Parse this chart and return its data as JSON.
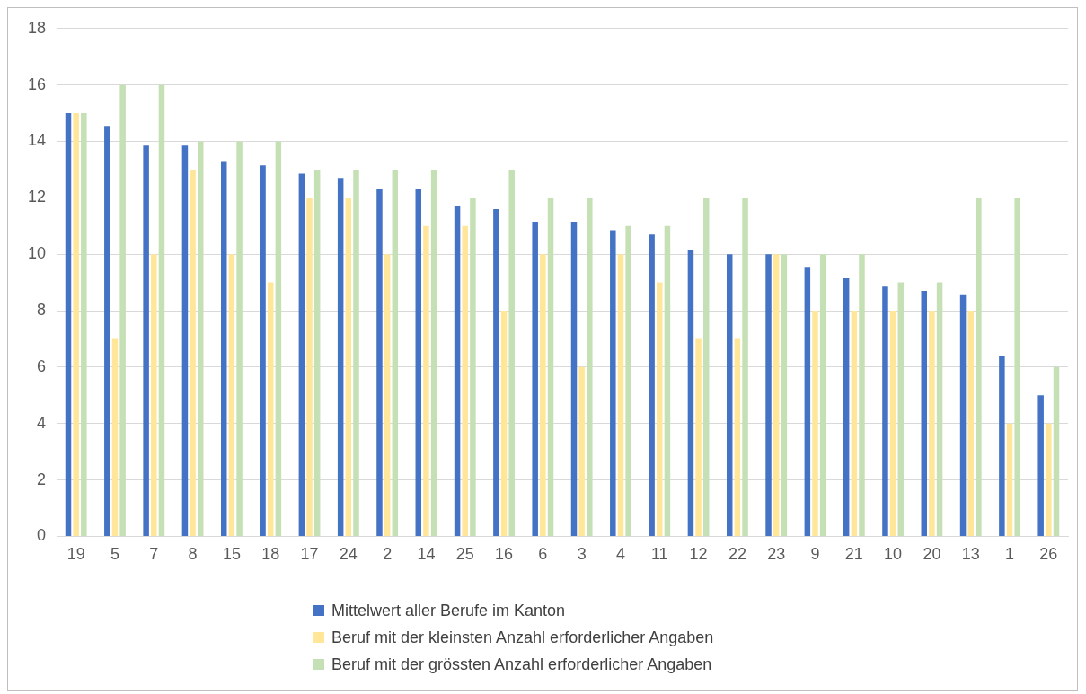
{
  "chart_data": {
    "type": "bar",
    "categories": [
      "19",
      "5",
      "7",
      "8",
      "15",
      "18",
      "17",
      "24",
      "2",
      "14",
      "25",
      "16",
      "6",
      "3",
      "4",
      "11",
      "12",
      "22",
      "23",
      "9",
      "21",
      "10",
      "20",
      "13",
      "1",
      "26"
    ],
    "series": [
      {
        "name": "Mittelwert aller Berufe im Kanton",
        "color": "#4472c4",
        "values": [
          15,
          14.55,
          13.85,
          13.85,
          13.3,
          13.15,
          12.85,
          12.7,
          12.3,
          12.3,
          11.7,
          11.6,
          11.15,
          11.15,
          10.85,
          10.7,
          10.15,
          10,
          10,
          9.55,
          9.15,
          8.85,
          8.7,
          8.55,
          6.4,
          5
        ]
      },
      {
        "name": "Beruf mit der kleinsten Anzahl erforderlicher Angaben",
        "color": "#ffe699",
        "values": [
          15,
          7,
          10,
          13,
          10,
          9,
          12,
          12,
          10,
          11,
          11,
          8,
          10,
          6,
          10,
          9,
          7,
          7,
          10,
          8,
          8,
          8,
          8,
          8,
          4,
          4
        ]
      },
      {
        "name": "Beruf mit der grössten Anzahl erforderlicher Angaben",
        "color": "#c5e0b4",
        "values": [
          15,
          16,
          16,
          14,
          14,
          14,
          13,
          13,
          13,
          13,
          12,
          13,
          12,
          12,
          11,
          11,
          12,
          12,
          10,
          10,
          10,
          9,
          9,
          12,
          12,
          6
        ]
      }
    ],
    "ylim": [
      0,
      18
    ],
    "yticks": [
      0,
      2,
      4,
      6,
      8,
      10,
      12,
      14,
      16,
      18
    ],
    "grid": "y",
    "legend": "bottom"
  }
}
